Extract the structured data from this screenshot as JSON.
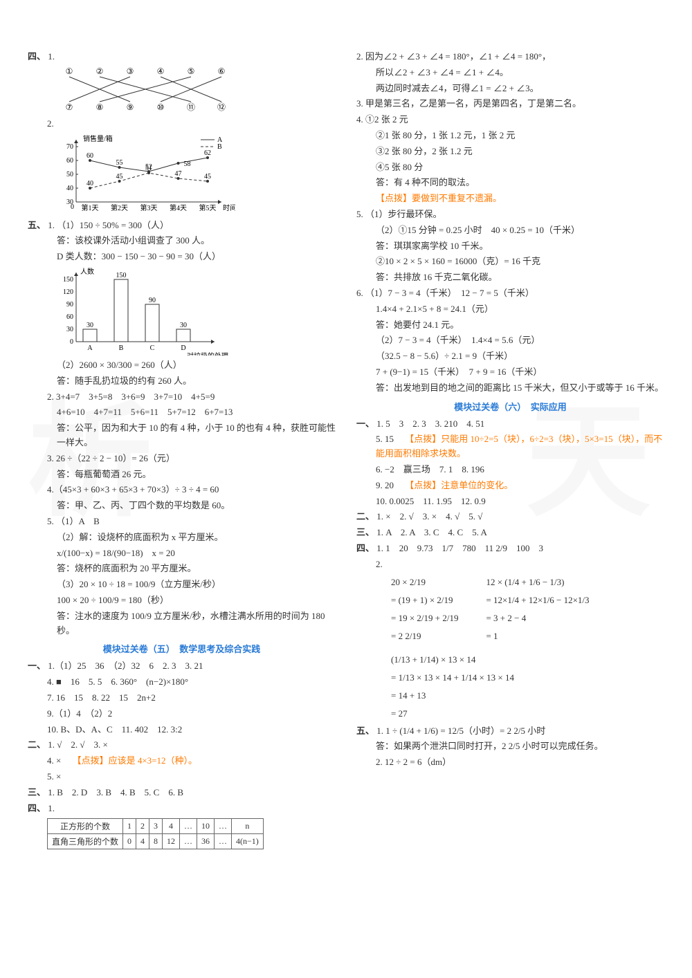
{
  "left": {
    "sec4_label": "四、",
    "sec4_q1_label": "1.",
    "match": {
      "top": [
        "①",
        "②",
        "③",
        "④",
        "⑤",
        "⑥"
      ],
      "bottom": [
        "⑦",
        "⑧",
        "⑨",
        "⑩",
        "⑪",
        "⑫"
      ],
      "lines": [
        [
          0,
          2
        ],
        [
          1,
          4
        ],
        [
          2,
          0
        ],
        [
          3,
          5
        ],
        [
          4,
          1
        ],
        [
          5,
          3
        ]
      ],
      "label_fontsize": 12,
      "line_color": "#333333"
    },
    "sec4_q2_label": "2.",
    "line_chart": {
      "ylabel": "销售量/箱",
      "xlabel": "时间",
      "legend": [
        "A",
        "B"
      ],
      "x_categories": [
        "第1天",
        "第2天",
        "第3天",
        "第4天",
        "第5天"
      ],
      "yticks": [
        30,
        40,
        50,
        60,
        70
      ],
      "seriesA": [
        60,
        55,
        52,
        58,
        62
      ],
      "seriesB": [
        40,
        45,
        51,
        47,
        45
      ],
      "labelsA": [
        "60",
        "55",
        "52",
        "",
        "62"
      ],
      "labelsB": [
        "40",
        "45",
        "51",
        "47",
        "45"
      ],
      "label58": "58",
      "colorA": "#333333",
      "colorB": "#333333",
      "styleB": "dashed",
      "axis_color": "#333333",
      "fontsize": 10
    },
    "sec5_label": "五、",
    "sec5_q1_num": "1.",
    "sec5_q1_1": "（1）150 ÷ 50% = 300（人）",
    "sec5_q1_ans1": "答：该校课外活动小组调查了 300 人。",
    "sec5_q1_d": "D 类人数：300 − 150 − 30 − 90 = 30（人）",
    "bar_chart": {
      "ylabel": "人数",
      "xlabel": "对垃圾的处理",
      "categories": [
        "A",
        "B",
        "C",
        "D"
      ],
      "values": [
        30,
        150,
        90,
        30
      ],
      "value_labels": [
        "30",
        "150",
        "90",
        "30"
      ],
      "yticks": [
        0,
        30,
        60,
        90,
        120,
        150
      ],
      "bar_color": "#ffffff",
      "bar_border": "#333333",
      "axis_color": "#333333",
      "fontsize": 10
    },
    "sec5_q1_2": "（2）2600 × 30/300 = 260（人）",
    "sec5_q1_ans2": "答：随手乱扔垃圾的约有 260 人。",
    "sec5_q2_num": "2.",
    "sec5_q2_l1": "3+4=7　3+5=8　3+6=9　3+7=10　4+5=9",
    "sec5_q2_l2": "4+6=10　4+7=11　5+6=11　5+7=12　6+7=13",
    "sec5_q2_ans": "答：公平，因为和大于 10 的有 4 种，小于 10 的也有 4 种，获胜可能性一样大。",
    "sec5_q3": "3. 26 ÷（22 ÷ 2 − 10）= 26（元）",
    "sec5_q3_ans": "答：每瓶葡萄酒 26 元。",
    "sec5_q4": "4.（45×3 + 60×3 + 65×3 + 70×3）÷ 3 ÷ 4 = 60",
    "sec5_q4_ans": "答：甲、乙、丙、丁四个数的平均数是 60。",
    "sec5_q5_num": "5.",
    "sec5_q5_1": "（1）A　B",
    "sec5_q5_2a": "（2）解：设烧杯的底面积为 x 平方厘米。",
    "sec5_q5_2b": "x/(100−x) = 18/(90−18)　x = 20",
    "sec5_q5_2ans": "答：烧杯的底面积为 20 平方厘米。",
    "sec5_q5_3a": "（3）20 × 10 ÷ 18 = 100/9（立方厘米/秒）",
    "sec5_q5_3b": "100 × 20 ÷ 100/9 = 180（秒）",
    "sec5_q5_3ans": "答：注水的速度为 100/9 立方厘米/秒，水槽注满水所用的时间为 180 秒。",
    "module5_title": "模块过关卷（五）　数学思考及综合实践",
    "m5_s1_label": "一、",
    "m5_s1_1": "1.（1）25　36　（2）32　6　2. 3　3. 21",
    "m5_s1_4": "4. ■　16　5. 5　6. 360°　(n−2)×180°",
    "m5_s1_7": "7. 16　15　8. 22　15　2n+2",
    "m5_s1_9": "9.（1）4　（2）2",
    "m5_s1_10": "10. B、D、A、C　11. 402　12. 3:2",
    "m5_s2_label": "二、",
    "m5_s2_1": "1. √　2. √　3. ×",
    "m5_s2_4": "4. ×　",
    "m5_s2_4_hint": "【点拨】应该是 4×3=12（种）。",
    "m5_s2_5": "5. ×",
    "m5_s3_label": "三、",
    "m5_s3": "1. B　2. D　3. B　4. B　5. C　6. B",
    "m5_s4_label": "四、",
    "m5_s4_1_label": "1.",
    "table": {
      "headers": [
        "正方形的个数",
        "1",
        "2",
        "3",
        "4",
        "…",
        "10",
        "…",
        "n"
      ],
      "row2": [
        "直角三角形的个数",
        "0",
        "4",
        "8",
        "12",
        "…",
        "36",
        "…",
        "4(n−1)"
      ]
    }
  },
  "right": {
    "q2_num": "2.",
    "q2_l1": "因为∠2 + ∠3 + ∠4 = 180°，∠1 + ∠4 = 180°，",
    "q2_l2": "所以∠2 + ∠3 + ∠4 = ∠1 + ∠4。",
    "q2_l3": "两边同时减去∠4，可得∠1 = ∠2 + ∠3。",
    "q3": "3. 甲是第三名，乙是第一名，丙是第四名，丁是第二名。",
    "q4_num": "4.",
    "q4_1": "①2 张 2 元",
    "q4_2": "②1 张 80 分，1 张 1.2 元，1 张 2 元",
    "q4_3": "③2 张 80 分，2 张 1.2 元",
    "q4_4": "④5 张 80 分",
    "q4_ans": "答：有 4 种不同的取法。",
    "q4_hint": "【点拨】要做到不重复不遗漏。",
    "q5_num": "5.",
    "q5_1": "（1）步行最环保。",
    "q5_2a": "（2）①15 分钟 = 0.25 小时　40 × 0.25 = 10（千米）",
    "q5_2a_ans": "答：琪琪家离学校 10 千米。",
    "q5_2b": "②10 × 2 × 5 × 160 = 16000（克）= 16 千克",
    "q5_2b_ans": "答：共排放 16 千克二氧化碳。",
    "q6_num": "6.",
    "q6_1a": "（1）7 − 3 = 4（千米）　12 − 7 = 5（千米）",
    "q6_1b": "1.4×4 + 2.1×5 + 8 = 24.1（元）",
    "q6_1_ans": "答：她要付 24.1 元。",
    "q6_2a": "（2）7 − 3 = 4（千米）　1.4×4 = 5.6（元）",
    "q6_2b": "（32.5 − 8 − 5.6）÷ 2.1 = 9（千米）",
    "q6_2c": "7 + (9−1) = 15（千米）　7 + 9 = 16（千米）",
    "q6_2_ans": "答：出发地到目的地之间的距离比 15 千米大，但又小于或等于 16 千米。",
    "module6_title": "模块过关卷（六）　实际应用",
    "m6_s1_label": "一、",
    "m6_s1_1": "1. 5　3　2. 3　3. 210　4. 51",
    "m6_s1_5": "5. 15　",
    "m6_s1_5_hint": "【点拨】只能用 10÷2=5（块），6÷2=3（块），5×3=15（块），而不能用面积相除求块数。",
    "m6_s1_6": "6. −2　赢三场　7. 1　8. 196",
    "m6_s1_9": "9. 20　",
    "m6_s1_9_hint": "【点拨】注意单位的变化。",
    "m6_s1_10": "10. 0.0025　11. 1.95　12. 0.9",
    "m6_s2_label": "二、",
    "m6_s2": "1. ×　2. √　3. ×　4. √　5. √",
    "m6_s3_label": "三、",
    "m6_s3": "1. A　2. A　3. C　4. C　5. A",
    "m6_s4_label": "四、",
    "m6_s4_1": "1. 1　20　9.73　1/7　780　11 2/9　100　3",
    "m6_s4_2_label": "2.",
    "calc2_left": [
      "20 × 2/19",
      "= (19 + 1) × 2/19",
      "= 19 × 2/19 + 2/19",
      "= 2 2/19"
    ],
    "calc2_right": [
      "12 × (1/4 + 1/6 − 1/3)",
      "= 12×1/4 + 12×1/6 − 12×1/3",
      "= 3 + 2 − 4",
      "= 1"
    ],
    "calc3": [
      "(1/13 + 1/14) × 13 × 14",
      "= 1/13 × 13 × 14 + 1/14 × 13 × 14",
      "= 14 + 13",
      "= 27"
    ],
    "m6_s5_label": "五、",
    "m6_s5_1": "1. 1 ÷ (1/4 + 1/6) = 12/5（小时）= 2 2/5 小时",
    "m6_s5_1_ans": "答：如果两个泄洪口同时打开，2 2/5 小时可以完成任务。",
    "m6_s5_2": "2. 12 ÷ 2 = 6（dm）"
  },
  "colors": {
    "text": "#333333",
    "hint": "#ff7a00",
    "title": "#2a7bd6",
    "watermark": "rgba(150,150,150,0.08)"
  }
}
